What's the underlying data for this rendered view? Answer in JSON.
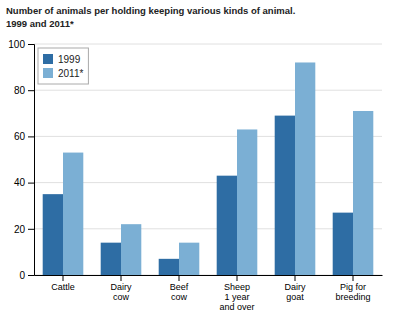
{
  "chart_data": {
    "type": "bar",
    "title": "Number of animals per holding keeping various kinds of animal.\n1999 and 2011*",
    "categories": [
      "Cattle",
      "Dairy\ncow",
      "Beef\ncow",
      "Sheep\n1 year\nand over",
      "Dairy\ngoat",
      "Pig for\nbreeding"
    ],
    "series": [
      {
        "name": "1999",
        "color": "#2E6DA4",
        "values": [
          35,
          14,
          7,
          43,
          69,
          27
        ]
      },
      {
        "name": "2011*",
        "color": "#7BAFD4",
        "values": [
          53,
          22,
          14,
          63,
          92,
          71
        ]
      }
    ],
    "ylim": [
      0,
      100
    ],
    "yticks": [
      0,
      20,
      40,
      60,
      80,
      100
    ],
    "grid": true,
    "legend": "upper left"
  }
}
